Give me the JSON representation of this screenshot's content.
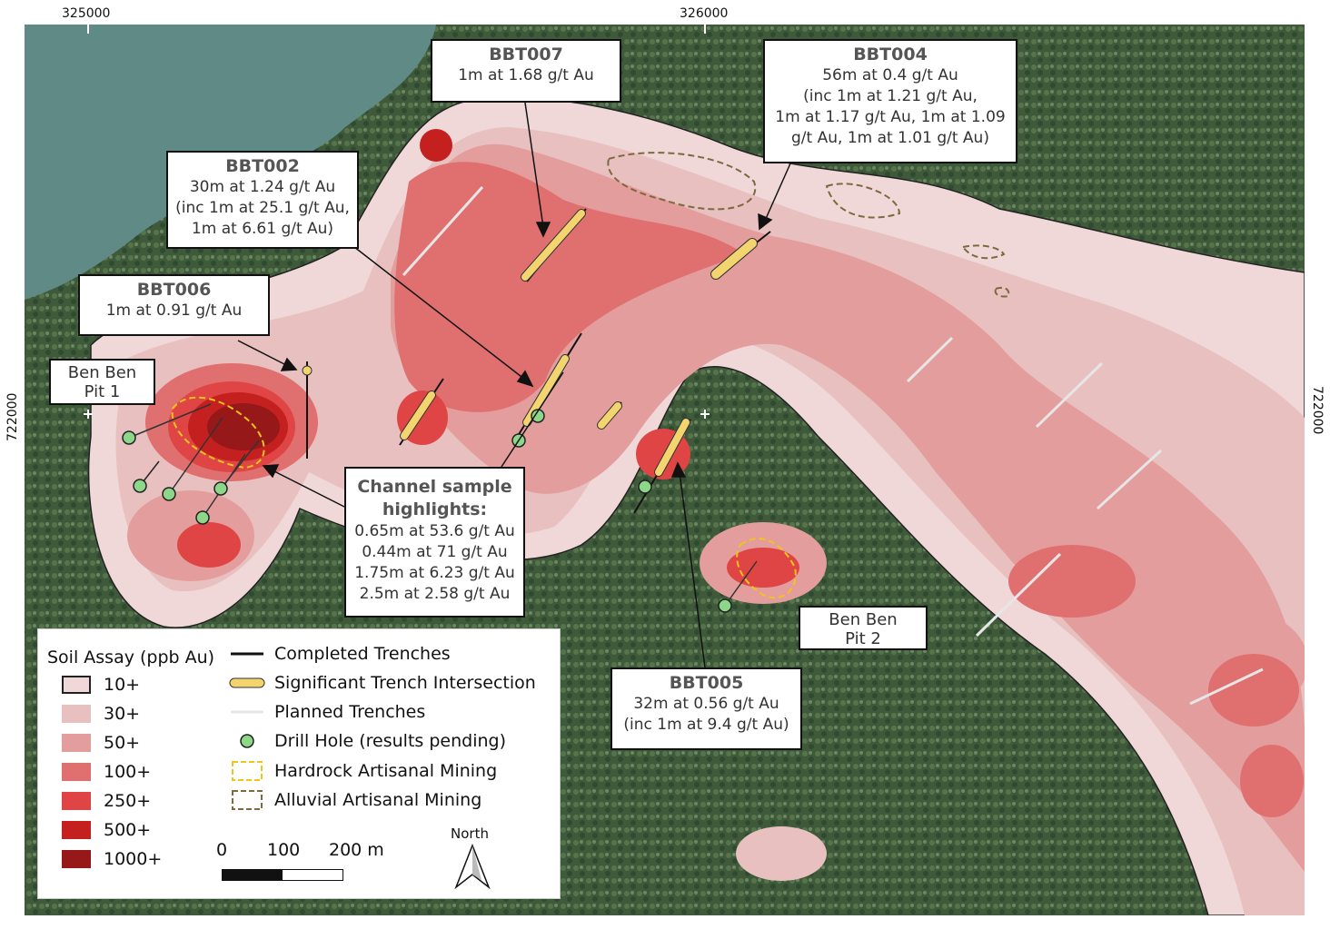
{
  "grid": {
    "x_labels": [
      "325000",
      "326000"
    ],
    "y_label_left": "722000",
    "y_label_right": "722000"
  },
  "callouts": {
    "bbt007": {
      "title": "BBT007",
      "lines": [
        "1m at 1.68 g/t Au"
      ]
    },
    "bbt004": {
      "title": "BBT004",
      "lines": [
        "56m at 0.4 g/t Au",
        "(inc 1m at 1.21 g/t Au,",
        "1m at 1.17 g/t Au, 1m at 1.09",
        "g/t Au, 1m at 1.01 g/t Au)"
      ]
    },
    "bbt002": {
      "title": "BBT002",
      "lines": [
        "30m at 1.24 g/t Au",
        "(inc 1m at 25.1 g/t Au,",
        "1m at 6.61 g/t Au)"
      ]
    },
    "bbt006": {
      "title": "BBT006",
      "lines": [
        "1m at 0.91 g/t Au"
      ]
    },
    "bbt005": {
      "title": "BBT005",
      "lines": [
        "32m at 0.56 g/t Au",
        "(inc 1m at 9.4 g/t Au)"
      ]
    },
    "channel": {
      "title": "Channel sample highlights:",
      "lines": [
        "0.65m at 53.6 g/t Au",
        "0.44m at 71 g/t Au",
        "1.75m at 6.23 g/t Au",
        "2.5m at 2.58 g/t Au"
      ]
    }
  },
  "pits": {
    "pit1": "Ben Ben Pit 1",
    "pit2": "Ben Ben Pit 2"
  },
  "legend": {
    "title": "Soil Assay (ppb Au)",
    "soil": [
      {
        "label": "10+",
        "color": "#f0d8d8"
      },
      {
        "label": "30+",
        "color": "#e8c0c0"
      },
      {
        "label": "50+",
        "color": "#e39d9d"
      },
      {
        "label": "100+",
        "color": "#e07070"
      },
      {
        "label": "250+",
        "color": "#e04545"
      },
      {
        "label": "500+",
        "color": "#c42020"
      },
      {
        "label": "1000+",
        "color": "#961818"
      }
    ],
    "features": [
      {
        "label": "Completed Trenches",
        "icon": "black-line"
      },
      {
        "label": "Significant Trench Intersection",
        "icon": "yellow-capsule",
        "color": "#f2d56e"
      },
      {
        "label": "Planned Trenches",
        "icon": "light-line"
      },
      {
        "label": "Drill Hole (results pending)",
        "icon": "green-circle",
        "color": "#8ed68a"
      },
      {
        "label": "Hardrock Artisanal Mining",
        "icon": "yellow-dashed-box",
        "color": "#f0c419"
      },
      {
        "label": "Alluvial Artisanal Mining",
        "icon": "olive-dashed-box",
        "color": "#7a6a3e"
      }
    ],
    "scale": {
      "labels": [
        "0",
        "100",
        "200 m"
      ]
    },
    "north": "North"
  }
}
